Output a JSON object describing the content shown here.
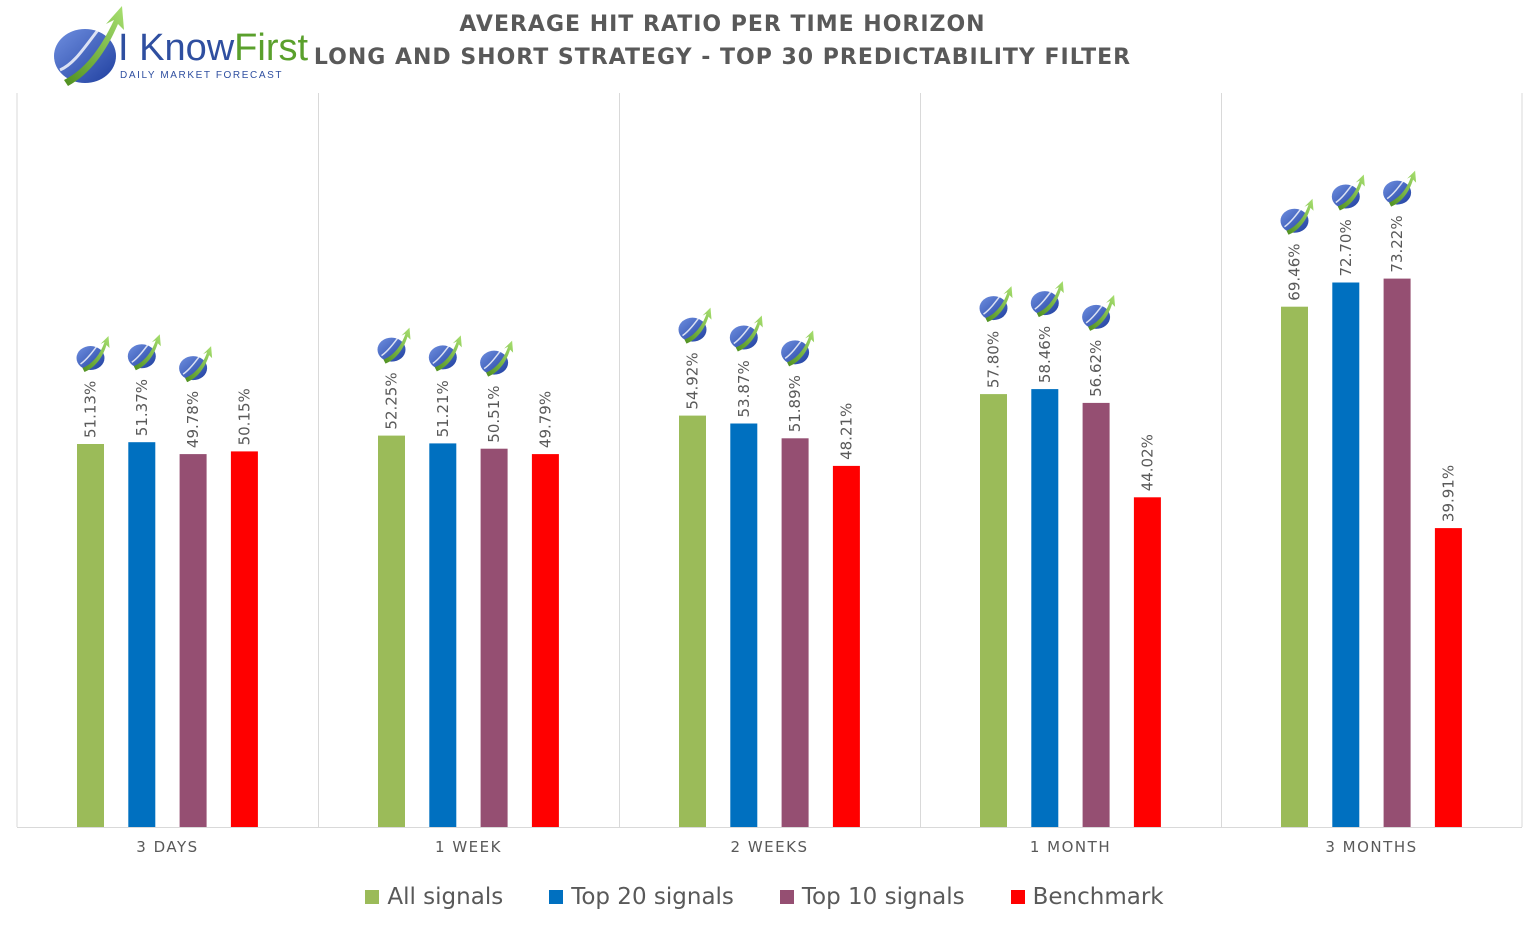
{
  "logo": {
    "brand_prefix": "I Know",
    "brand_suffix": "First",
    "tagline": "Daily Market Forecast",
    "icon": "rising-arrow-globe-icon"
  },
  "marker_icon": "rising-arrow-globe-icon",
  "chart_data": {
    "type": "bar",
    "title": "AVERAGE HIT RATIO PER TIME HORIZON",
    "subtitle": "LONG AND SHORT STRATEGY - TOP 30 PREDICTABILITY FILTER",
    "categories": [
      "3 DAYS",
      "1 WEEK",
      "2 WEEKS",
      "1 MONTH",
      "3 MONTHS"
    ],
    "series": [
      {
        "name": "All signals",
        "color": "#9BBB59",
        "values": [
          51.13,
          52.25,
          54.92,
          57.8,
          69.46
        ],
        "labels": [
          "51.13%",
          "52.25%",
          "54.92%",
          "57.80%",
          "69.46%"
        ],
        "marked": true
      },
      {
        "name": "Top 20 signals",
        "color": "#0070C0",
        "values": [
          51.37,
          51.21,
          53.87,
          58.46,
          72.7
        ],
        "labels": [
          "51.37%",
          "51.21%",
          "53.87%",
          "58.46%",
          "72.70%"
        ],
        "marked": true
      },
      {
        "name": "Top 10 signals",
        "color": "#954F72",
        "values": [
          49.78,
          50.51,
          51.89,
          56.62,
          73.22
        ],
        "labels": [
          "49.78%",
          "50.51%",
          "51.89%",
          "56.62%",
          "73.22%"
        ],
        "marked": true
      },
      {
        "name": "Benchmark",
        "color": "#FF0000",
        "values": [
          50.15,
          49.79,
          48.21,
          44.02,
          39.91
        ],
        "labels": [
          "50.15%",
          "49.79%",
          "48.21%",
          "44.02%",
          "39.91%"
        ],
        "marked": false
      }
    ],
    "ylim": [
      0,
      100
    ],
    "grid": false,
    "legend_position": "bottom",
    "data_labels": "rotated"
  }
}
